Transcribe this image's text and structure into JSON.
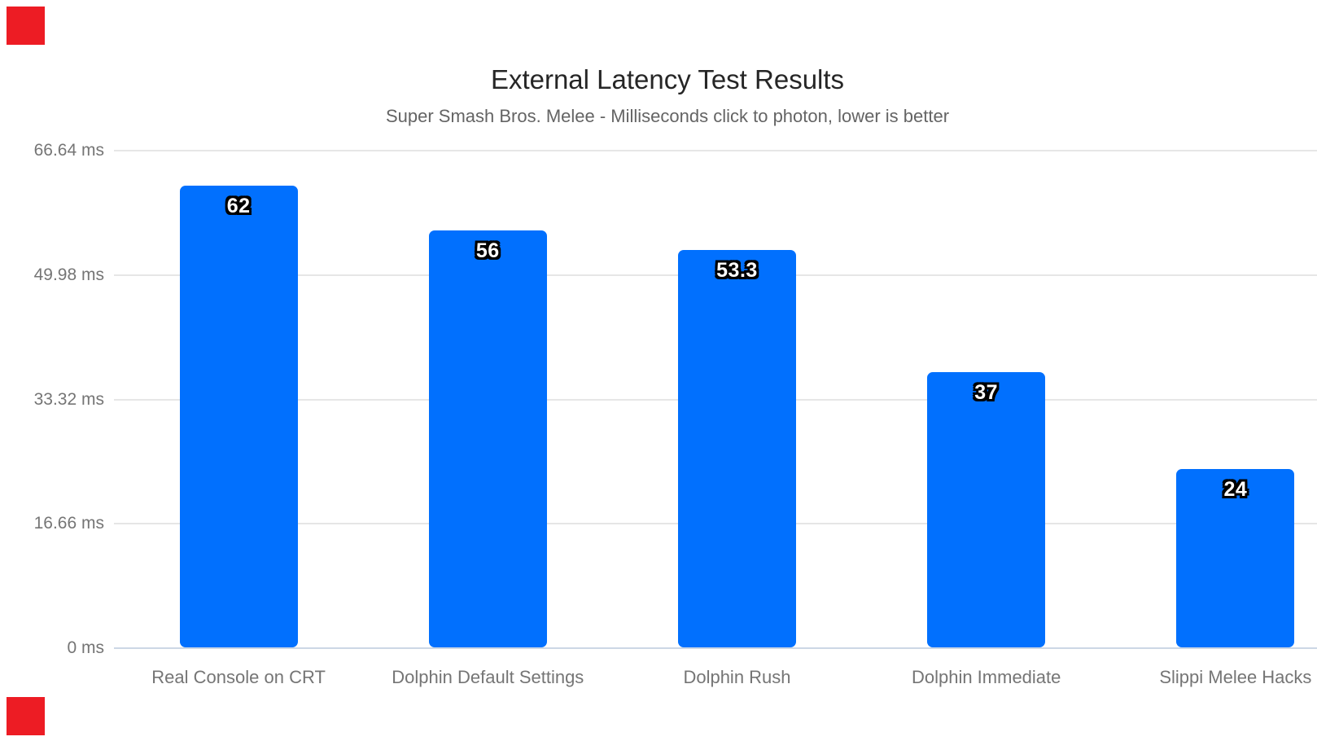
{
  "page": {
    "background": "#ffffff"
  },
  "chart_data": {
    "type": "bar",
    "title": "External Latency Test Results",
    "subtitle": "Super Smash Bros. Melee - Milliseconds click to photon, lower is better",
    "categories": [
      "Real Console on CRT",
      "Dolphin Default Settings",
      "Dolphin Rush",
      "Dolphin Immediate",
      "Slippi Melee Hacks"
    ],
    "values": [
      62,
      56,
      53.3,
      37,
      24
    ],
    "value_labels": [
      "62",
      "56",
      "53.3",
      "37",
      "24"
    ],
    "unit": "ms",
    "xlabel": "",
    "ylabel": "",
    "ylim": [
      0,
      66.64
    ],
    "yticks": [
      {
        "value": 0,
        "label": "0 ms"
      },
      {
        "value": 16.66,
        "label": "16.66 ms"
      },
      {
        "value": 33.32,
        "label": "33.32 ms"
      },
      {
        "value": 49.98,
        "label": "49.98 ms"
      },
      {
        "value": 66.64,
        "label": "66.64 ms"
      }
    ],
    "grid": true,
    "legend_position": "none",
    "colors": {
      "bar": "#0170fe",
      "value_label_fill": "#ffffff",
      "value_label_outline": "#000000",
      "gridline": "#e6e6e6",
      "axis_baseline": "#ccd7e5",
      "axis_text": "#757575",
      "title_text": "#262626",
      "subtitle_text": "#646464"
    }
  },
  "annotations": {
    "corner_markers": {
      "color": "#ed1c24",
      "positions": [
        "top-left",
        "bottom-left"
      ]
    }
  }
}
